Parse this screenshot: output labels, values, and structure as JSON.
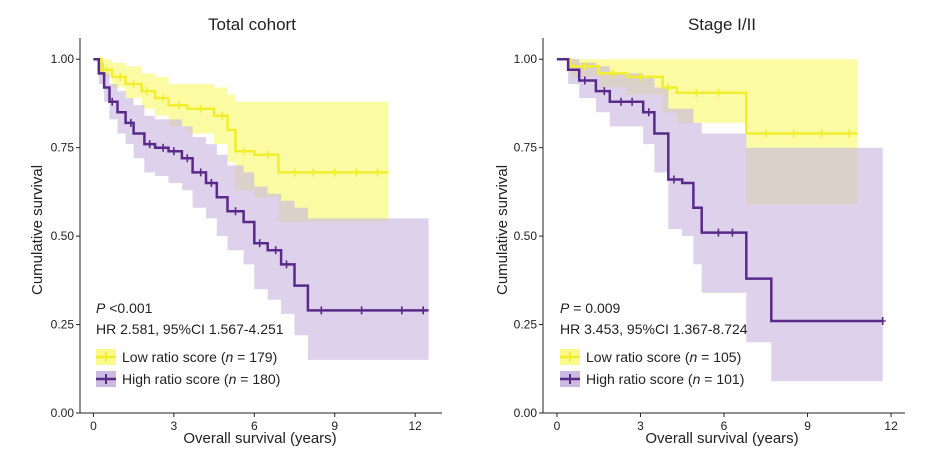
{
  "chart_data": [
    {
      "type": "line",
      "subtype": "kaplan-meier",
      "title": "Total cohort",
      "xlabel": "Overall survival (years)",
      "ylabel": "Cumulative survival",
      "xlim": [
        -0.5,
        13
      ],
      "ylim": [
        0,
        1.06
      ],
      "x_ticks": [
        0,
        3,
        6,
        9,
        12
      ],
      "x_tick_labels": [
        "0",
        "3",
        "6",
        "9",
        "12"
      ],
      "y_ticks": [
        0,
        0.25,
        0.5,
        0.75,
        1.0
      ],
      "y_tick_labels": [
        "0.00",
        "0.25",
        "0.50",
        "0.75",
        "1.00"
      ],
      "p_prefix": "P",
      "p_text": " <0.001",
      "hr_text": "HR 2.581, 95%CI 1.567-4.251",
      "legend": [
        {
          "text": "Low ratio score (",
          "n_label": "n",
          "n_value": " = 179)"
        },
        {
          "text": "High ratio score (",
          "n_label": "n",
          "n_value": " = 180)"
        }
      ],
      "series": [
        {
          "name": "Low ratio score",
          "color": "#f2ee2e",
          "band_color": "#fafa8c",
          "steps": [
            [
              0,
              1.0
            ],
            [
              0.3,
              0.97
            ],
            [
              0.7,
              0.95
            ],
            [
              1.2,
              0.93
            ],
            [
              1.8,
              0.91
            ],
            [
              2.3,
              0.89
            ],
            [
              2.8,
              0.87
            ],
            [
              3.5,
              0.86
            ],
            [
              4.5,
              0.84
            ],
            [
              5.0,
              0.8
            ],
            [
              5.3,
              0.74
            ],
            [
              6.0,
              0.73
            ],
            [
              6.9,
              0.68
            ],
            [
              11.0,
              0.68
            ]
          ],
          "lower": [
            [
              0,
              1.0
            ],
            [
              0.3,
              0.95
            ],
            [
              0.7,
              0.92
            ],
            [
              1.2,
              0.89
            ],
            [
              1.8,
              0.86
            ],
            [
              2.3,
              0.84
            ],
            [
              2.8,
              0.81
            ],
            [
              3.5,
              0.79
            ],
            [
              4.5,
              0.76
            ],
            [
              5.0,
              0.71
            ],
            [
              5.3,
              0.63
            ],
            [
              6.0,
              0.61
            ],
            [
              6.9,
              0.54
            ],
            [
              11.0,
              0.54
            ]
          ],
          "upper": [
            [
              0,
              1.0
            ],
            [
              0.3,
              1.0
            ],
            [
              0.7,
              0.99
            ],
            [
              1.2,
              0.98
            ],
            [
              1.8,
              0.96
            ],
            [
              2.3,
              0.95
            ],
            [
              2.8,
              0.93
            ],
            [
              3.5,
              0.93
            ],
            [
              4.5,
              0.92
            ],
            [
              5.0,
              0.9
            ],
            [
              5.3,
              0.88
            ],
            [
              6.0,
              0.88
            ],
            [
              6.9,
              0.88
            ],
            [
              11.0,
              0.88
            ]
          ],
          "censors": [
            [
              0.5,
              0.97
            ],
            [
              1.0,
              0.95
            ],
            [
              1.5,
              0.93
            ],
            [
              2.0,
              0.91
            ],
            [
              2.6,
              0.89
            ],
            [
              3.2,
              0.87
            ],
            [
              4.0,
              0.86
            ],
            [
              4.8,
              0.84
            ],
            [
              5.6,
              0.74
            ],
            [
              6.5,
              0.73
            ],
            [
              7.5,
              0.68
            ],
            [
              8.2,
              0.68
            ],
            [
              9.0,
              0.68
            ],
            [
              9.8,
              0.68
            ],
            [
              10.6,
              0.68
            ]
          ]
        },
        {
          "name": "High ratio score",
          "color": "#5a2a8a",
          "band_color": "#cbb9e0",
          "steps": [
            [
              0,
              1.0
            ],
            [
              0.2,
              0.96
            ],
            [
              0.4,
              0.92
            ],
            [
              0.6,
              0.88
            ],
            [
              0.9,
              0.85
            ],
            [
              1.2,
              0.82
            ],
            [
              1.5,
              0.79
            ],
            [
              1.9,
              0.76
            ],
            [
              2.3,
              0.75
            ],
            [
              2.8,
              0.74
            ],
            [
              3.3,
              0.72
            ],
            [
              3.7,
              0.68
            ],
            [
              4.2,
              0.65
            ],
            [
              4.6,
              0.61
            ],
            [
              5.0,
              0.57
            ],
            [
              5.6,
              0.54
            ],
            [
              6.0,
              0.48
            ],
            [
              6.5,
              0.46
            ],
            [
              7.0,
              0.42
            ],
            [
              7.5,
              0.36
            ],
            [
              8.0,
              0.29
            ],
            [
              12.5,
              0.29
            ]
          ],
          "lower": [
            [
              0,
              1.0
            ],
            [
              0.2,
              0.93
            ],
            [
              0.4,
              0.88
            ],
            [
              0.6,
              0.83
            ],
            [
              0.9,
              0.79
            ],
            [
              1.2,
              0.76
            ],
            [
              1.5,
              0.72
            ],
            [
              1.9,
              0.68
            ],
            [
              2.3,
              0.67
            ],
            [
              2.8,
              0.65
            ],
            [
              3.3,
              0.63
            ],
            [
              3.7,
              0.58
            ],
            [
              4.2,
              0.55
            ],
            [
              4.6,
              0.5
            ],
            [
              5.0,
              0.46
            ],
            [
              5.6,
              0.42
            ],
            [
              6.0,
              0.35
            ],
            [
              6.5,
              0.32
            ],
            [
              7.0,
              0.28
            ],
            [
              7.5,
              0.22
            ],
            [
              8.0,
              0.15
            ],
            [
              12.5,
              0.15
            ]
          ],
          "upper": [
            [
              0,
              1.0
            ],
            [
              0.2,
              0.99
            ],
            [
              0.4,
              0.96
            ],
            [
              0.6,
              0.93
            ],
            [
              0.9,
              0.91
            ],
            [
              1.2,
              0.89
            ],
            [
              1.5,
              0.87
            ],
            [
              1.9,
              0.84
            ],
            [
              2.3,
              0.83
            ],
            [
              2.8,
              0.83
            ],
            [
              3.3,
              0.81
            ],
            [
              3.7,
              0.78
            ],
            [
              4.2,
              0.76
            ],
            [
              4.6,
              0.73
            ],
            [
              5.0,
              0.7
            ],
            [
              5.6,
              0.68
            ],
            [
              6.0,
              0.64
            ],
            [
              6.5,
              0.62
            ],
            [
              7.0,
              0.6
            ],
            [
              7.5,
              0.58
            ],
            [
              8.0,
              0.55
            ],
            [
              12.5,
              0.55
            ]
          ],
          "censors": [
            [
              0.7,
              0.88
            ],
            [
              1.4,
              0.82
            ],
            [
              2.1,
              0.76
            ],
            [
              2.6,
              0.75
            ],
            [
              3.0,
              0.74
            ],
            [
              3.5,
              0.72
            ],
            [
              4.0,
              0.68
            ],
            [
              4.4,
              0.65
            ],
            [
              5.3,
              0.57
            ],
            [
              6.2,
              0.48
            ],
            [
              6.8,
              0.46
            ],
            [
              7.2,
              0.42
            ],
            [
              8.5,
              0.29
            ],
            [
              10.0,
              0.29
            ],
            [
              11.5,
              0.29
            ],
            [
              12.3,
              0.29
            ]
          ]
        }
      ]
    },
    {
      "type": "line",
      "subtype": "kaplan-meier",
      "title": "Stage I/II",
      "xlabel": "Overall survival (years)",
      "ylabel": "Cumulative survival",
      "xlim": [
        -0.5,
        12.5
      ],
      "ylim": [
        0,
        1.06
      ],
      "x_ticks": [
        0,
        3,
        6,
        9,
        12
      ],
      "x_tick_labels": [
        "0",
        "3",
        "6",
        "9",
        "12"
      ],
      "y_ticks": [
        0,
        0.25,
        0.5,
        0.75,
        1.0
      ],
      "y_tick_labels": [
        "0.00",
        "0.25",
        "0.50",
        "0.75",
        "1.00"
      ],
      "p_prefix": "P",
      "p_text": " = 0.009",
      "hr_text": "HR 3.453, 95%CI 1.367-8.724",
      "legend": [
        {
          "text": "Low ratio score (",
          "n_label": "n",
          "n_value": " = 105)"
        },
        {
          "text": "High ratio score (",
          "n_label": "n",
          "n_value": " = 101)"
        }
      ],
      "series": [
        {
          "name": "Low ratio score",
          "color": "#f2ee2e",
          "band_color": "#fafa8c",
          "steps": [
            [
              0,
              1.0
            ],
            [
              0.5,
              0.98
            ],
            [
              1.5,
              0.96
            ],
            [
              2.5,
              0.95
            ],
            [
              3.8,
              0.92
            ],
            [
              4.3,
              0.905
            ],
            [
              6.8,
              0.79
            ],
            [
              10.8,
              0.79
            ]
          ],
          "lower": [
            [
              0,
              1.0
            ],
            [
              0.5,
              0.95
            ],
            [
              1.5,
              0.92
            ],
            [
              2.5,
              0.9
            ],
            [
              3.8,
              0.85
            ],
            [
              4.3,
              0.82
            ],
            [
              6.8,
              0.59
            ],
            [
              10.8,
              0.59
            ]
          ],
          "upper": [
            [
              0,
              1.0
            ],
            [
              0.5,
              1.0
            ],
            [
              1.5,
              1.0
            ],
            [
              2.5,
              1.0
            ],
            [
              3.8,
              1.0
            ],
            [
              4.3,
              1.0
            ],
            [
              6.8,
              1.0
            ],
            [
              10.8,
              1.0
            ]
          ],
          "censors": [
            [
              1.0,
              0.98
            ],
            [
              2.0,
              0.96
            ],
            [
              3.0,
              0.95
            ],
            [
              4.0,
              0.92
            ],
            [
              5.0,
              0.905
            ],
            [
              5.8,
              0.905
            ],
            [
              7.5,
              0.79
            ],
            [
              8.5,
              0.79
            ],
            [
              9.5,
              0.79
            ],
            [
              10.5,
              0.79
            ]
          ]
        },
        {
          "name": "High ratio score",
          "color": "#5a2a8a",
          "band_color": "#cbb9e0",
          "steps": [
            [
              0,
              1.0
            ],
            [
              0.4,
              0.97
            ],
            [
              0.8,
              0.94
            ],
            [
              1.4,
              0.91
            ],
            [
              1.9,
              0.88
            ],
            [
              3.1,
              0.85
            ],
            [
              3.5,
              0.79
            ],
            [
              4.0,
              0.66
            ],
            [
              4.5,
              0.65
            ],
            [
              4.9,
              0.58
            ],
            [
              5.2,
              0.51
            ],
            [
              6.8,
              0.38
            ],
            [
              7.7,
              0.26
            ],
            [
              11.7,
              0.26
            ]
          ],
          "lower": [
            [
              0,
              1.0
            ],
            [
              0.4,
              0.93
            ],
            [
              0.8,
              0.89
            ],
            [
              1.4,
              0.85
            ],
            [
              1.9,
              0.81
            ],
            [
              3.1,
              0.76
            ],
            [
              3.5,
              0.68
            ],
            [
              4.0,
              0.52
            ],
            [
              4.5,
              0.5
            ],
            [
              4.9,
              0.42
            ],
            [
              5.2,
              0.34
            ],
            [
              6.8,
              0.2
            ],
            [
              7.7,
              0.09
            ],
            [
              11.7,
              0.09
            ]
          ],
          "upper": [
            [
              0,
              1.0
            ],
            [
              0.4,
              1.0
            ],
            [
              0.8,
              0.99
            ],
            [
              1.4,
              0.98
            ],
            [
              1.9,
              0.96
            ],
            [
              3.1,
              0.95
            ],
            [
              3.5,
              0.92
            ],
            [
              4.0,
              0.86
            ],
            [
              4.5,
              0.86
            ],
            [
              4.9,
              0.82
            ],
            [
              5.2,
              0.79
            ],
            [
              6.8,
              0.75
            ],
            [
              7.7,
              0.75
            ],
            [
              11.7,
              0.75
            ]
          ],
          "censors": [
            [
              1.0,
              0.94
            ],
            [
              1.7,
              0.91
            ],
            [
              2.3,
              0.88
            ],
            [
              2.7,
              0.88
            ],
            [
              3.3,
              0.85
            ],
            [
              4.2,
              0.66
            ],
            [
              5.8,
              0.51
            ],
            [
              6.3,
              0.51
            ],
            [
              11.7,
              0.26
            ]
          ]
        }
      ]
    }
  ]
}
